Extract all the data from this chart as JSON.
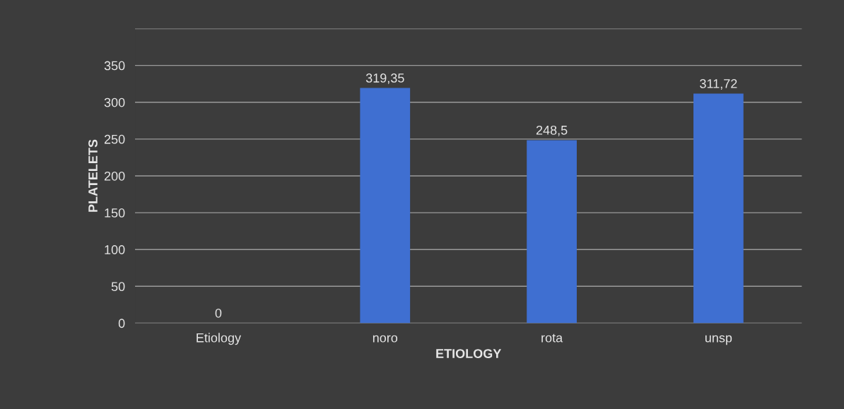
{
  "chart_data": {
    "type": "bar",
    "xlabel": "ETIOLOGY",
    "ylabel": "PLATELETS",
    "categories": [
      "Etiology",
      "noro",
      "rota",
      "unsp"
    ],
    "values": [
      0,
      319.35,
      248.5,
      311.72
    ],
    "value_labels": [
      "0",
      "319,35",
      "248,5",
      "311,72"
    ],
    "color": "#3f6fd1",
    "ylim": [
      0,
      400
    ],
    "yticks": [
      0,
      50,
      100,
      150,
      200,
      250,
      300,
      350,
      {
        "value": 400,
        "label": null
      }
    ],
    "grid": "y"
  }
}
